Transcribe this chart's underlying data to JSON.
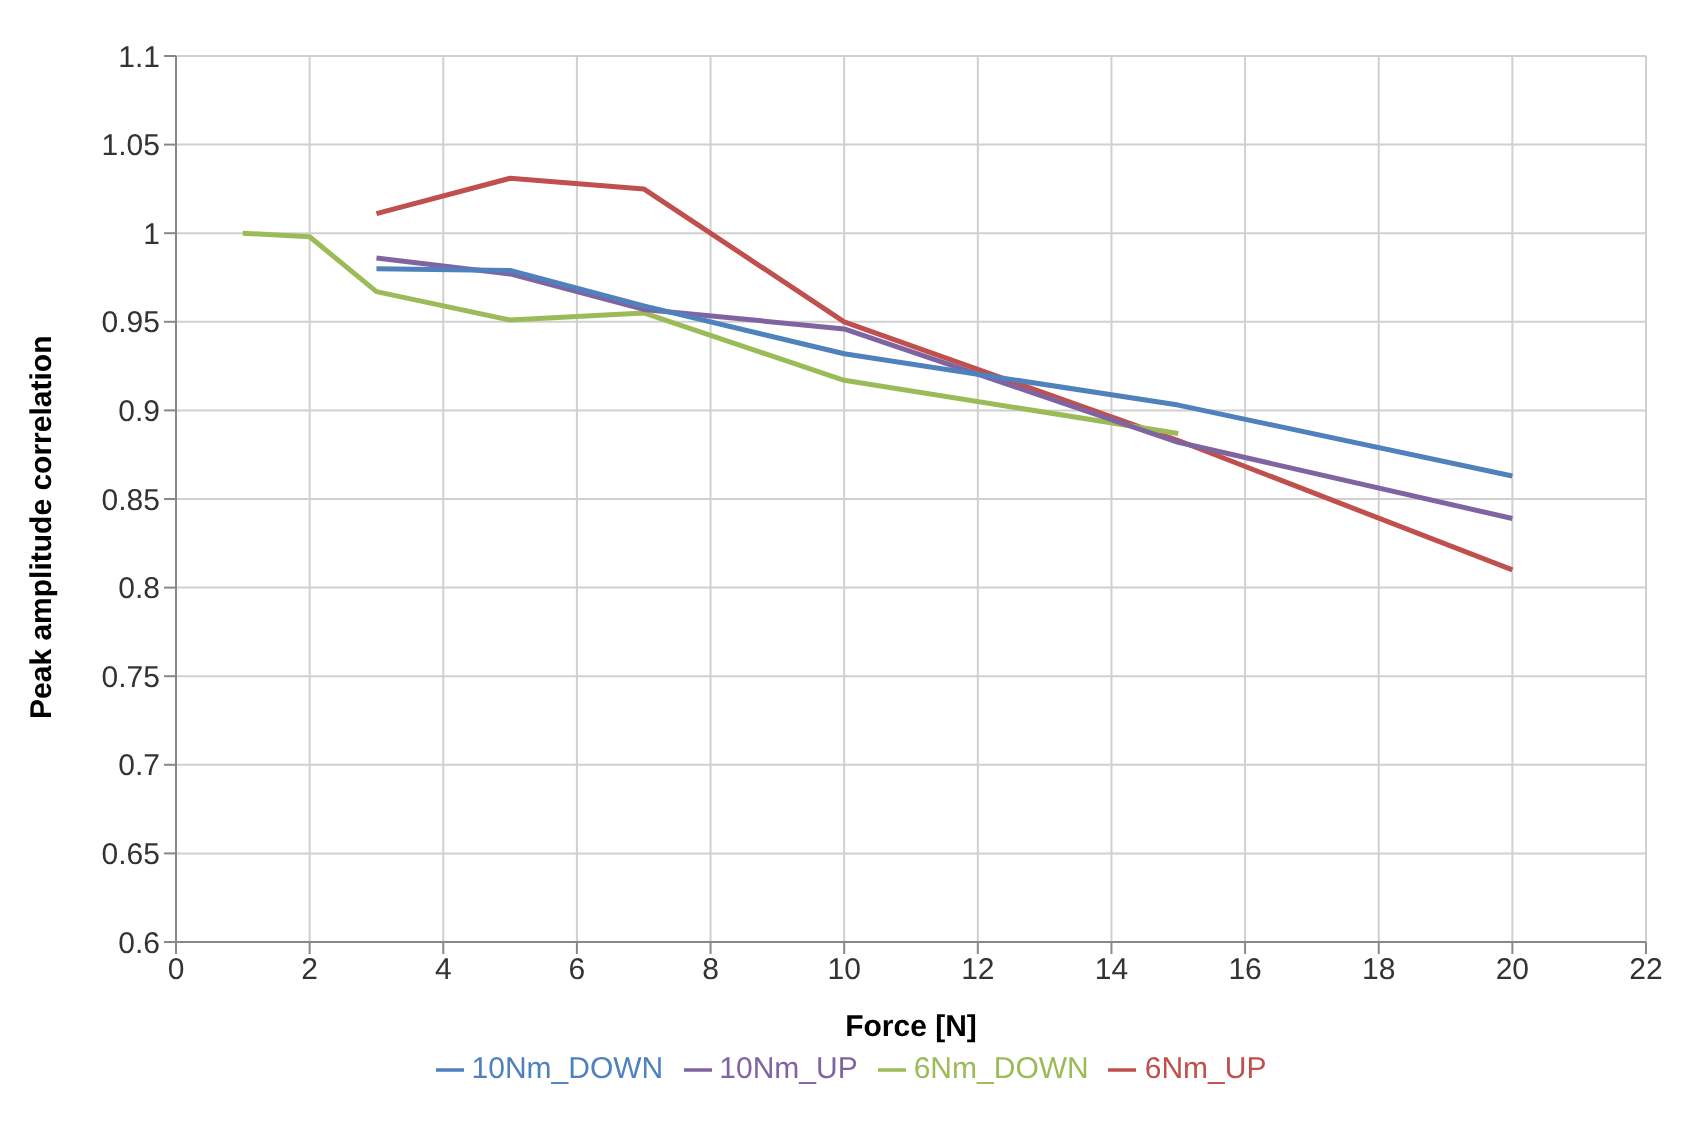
{
  "chart_data": {
    "type": "line",
    "xlabel": "Force [N]",
    "ylabel": "Peak amplitude correlation",
    "xlim": [
      0,
      22
    ],
    "xticks": [
      0,
      2,
      4,
      6,
      8,
      10,
      12,
      14,
      16,
      18,
      20,
      22
    ],
    "ylim": [
      0.6,
      1.1
    ],
    "yticks": [
      0.6,
      0.65,
      0.7,
      0.75,
      0.8,
      0.85,
      0.9,
      0.95,
      1,
      1.05,
      1.1
    ],
    "grid": true,
    "legend": "bottom",
    "marker": "none",
    "series": [
      {
        "name": "6Nm_UP",
        "color": "#c0504d",
        "x": [
          3,
          5,
          7,
          10,
          15,
          20
        ],
        "values": [
          1.011,
          1.031,
          1.025,
          0.95,
          0.883,
          0.81
        ]
      },
      {
        "name": "6Nm_DOWN",
        "color": "#9bbb59",
        "x": [
          1,
          2,
          3,
          5,
          7,
          10,
          15
        ],
        "values": [
          1.0,
          0.998,
          0.967,
          0.951,
          0.955,
          0.917,
          0.887
        ]
      },
      {
        "name": "10Nm_UP",
        "color": "#8064a2",
        "x": [
          3,
          5,
          7,
          10,
          15,
          20
        ],
        "values": [
          0.986,
          0.977,
          0.957,
          0.946,
          0.882,
          0.839
        ]
      },
      {
        "name": "10Nm_DOWN",
        "color": "#4f81bd",
        "x": [
          3,
          5,
          7,
          10,
          15,
          20
        ],
        "values": [
          0.98,
          0.979,
          0.959,
          0.932,
          0.903,
          0.863
        ]
      }
    ]
  }
}
